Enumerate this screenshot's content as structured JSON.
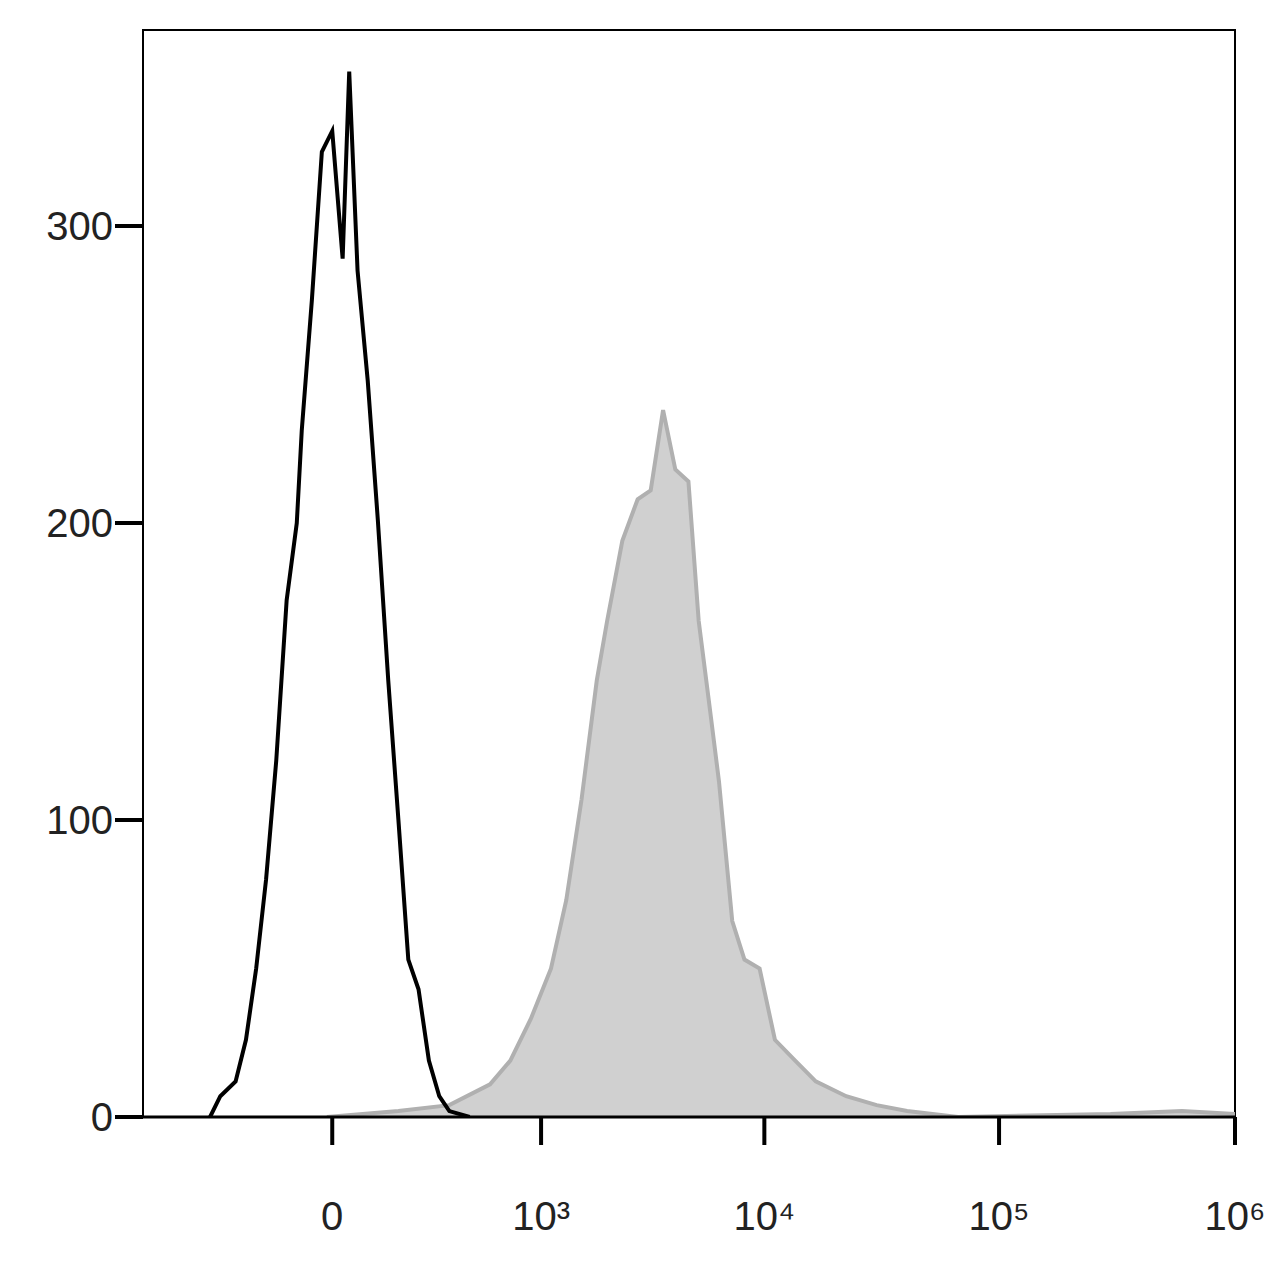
{
  "chart_data": {
    "type": "area",
    "log": "x",
    "xlim": [
      -800,
      1000000
    ],
    "xticks": [
      0,
      {
        "value": 1000,
        "label": "10³"
      },
      {
        "value": 10000,
        "label": "10⁴"
      },
      {
        "value": 100000,
        "label": "10⁵"
      },
      {
        "value": 1000000,
        "label": "10⁶"
      }
    ],
    "ylim": [
      0,
      366
    ],
    "yticks": [
      0,
      100,
      200,
      300
    ],
    "series": [
      {
        "type": "area",
        "color": "#b0b0b0",
        "x": [
          -8,
          136,
          320,
          549,
          702,
          890,
          1117,
          1320,
          1557,
          1830,
          2040,
          2390,
          2800,
          3200,
          3630,
          4110,
          4690,
          5200,
          5760,
          6370,
          7270,
          8210,
          9540,
          11100,
          13560,
          16600,
          22400,
          30200,
          40700,
          67000,
          297000,
          596000,
          1000000
        ],
        "values": [
          0,
          2,
          4,
          11,
          19,
          33,
          50,
          73,
          107,
          147,
          167,
          194,
          208,
          211,
          238,
          218,
          214,
          167,
          140,
          113,
          66,
          53,
          50,
          26,
          19,
          12,
          7,
          4,
          2,
          0,
          1,
          2,
          1
        ]
      },
      {
        "type": "line",
        "color": "#000000",
        "x": [
          -344,
          -297,
          -235,
          -198,
          -165,
          -136,
          -109,
          -84,
          -62,
          -52,
          -33,
          -16,
          0,
          16,
          27,
          42,
          62,
          84,
          109,
          136,
          165,
          198,
          235,
          276,
          320,
          423
        ],
        "values": [
          0,
          7,
          12,
          26,
          50,
          80,
          120,
          174,
          200,
          231,
          275,
          325,
          332,
          289,
          352,
          285,
          248,
          201,
          147,
          100,
          53,
          43,
          19,
          7,
          2,
          0
        ]
      }
    ]
  }
}
